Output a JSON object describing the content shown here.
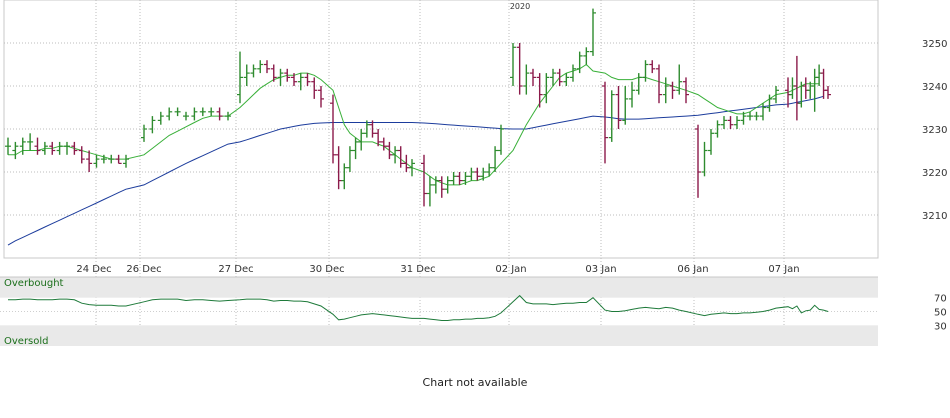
{
  "chart_data": {
    "type": "ohlc",
    "year_marker": "2020",
    "x_ticks": [
      "24 Dec",
      "26 Dec",
      "27 Dec",
      "30 Dec",
      "31 Dec",
      "02 Jan",
      "03 Jan",
      "06 Jan",
      "07 Jan"
    ],
    "y_ticks": [
      3210,
      3220,
      3230,
      3240,
      3250
    ],
    "y_range": [
      3200,
      3260
    ],
    "grid": true,
    "bars": [
      {
        "o": 3226,
        "h": 3228,
        "l": 3224,
        "c": 3226
      },
      {
        "o": 3225,
        "h": 3227,
        "l": 3223,
        "c": 3226
      },
      {
        "o": 3226,
        "h": 3228,
        "l": 3224,
        "c": 3227
      },
      {
        "o": 3227,
        "h": 3229,
        "l": 3225,
        "c": 3227
      },
      {
        "o": 3226,
        "h": 3228,
        "l": 3224,
        "c": 3225
      },
      {
        "o": 3225,
        "h": 3227,
        "l": 3224,
        "c": 3226
      },
      {
        "o": 3226,
        "h": 3227,
        "l": 3224,
        "c": 3225
      },
      {
        "o": 3225,
        "h": 3227,
        "l": 3224,
        "c": 3226
      },
      {
        "o": 3226,
        "h": 3227,
        "l": 3224,
        "c": 3226
      },
      {
        "o": 3226,
        "h": 3227,
        "l": 3224,
        "c": 3225
      },
      {
        "o": 3225,
        "h": 3226,
        "l": 3222,
        "c": 3223
      },
      {
        "o": 3223,
        "h": 3225,
        "l": 3220,
        "c": 3222
      },
      {
        "o": 3222,
        "h": 3224,
        "l": 3221,
        "c": 3223
      },
      {
        "o": 3223,
        "h": 3224,
        "l": 3222,
        "c": 3223
      },
      {
        "o": 3223,
        "h": 3224,
        "l": 3222,
        "c": 3223
      },
      {
        "o": 3223,
        "h": 3224,
        "l": 3222,
        "c": 3222
      },
      {
        "o": 3222,
        "h": 3224,
        "l": 3221,
        "c": 3223
      },
      {
        "o": 3228,
        "h": 3231,
        "l": 3227,
        "c": 3230
      },
      {
        "o": 3230,
        "h": 3233,
        "l": 3229,
        "c": 3232
      },
      {
        "o": 3232,
        "h": 3234,
        "l": 3231,
        "c": 3233
      },
      {
        "o": 3233,
        "h": 3235,
        "l": 3232,
        "c": 3234
      },
      {
        "o": 3234,
        "h": 3235,
        "l": 3233,
        "c": 3234
      },
      {
        "o": 3233,
        "h": 3234,
        "l": 3232,
        "c": 3233
      },
      {
        "o": 3233,
        "h": 3235,
        "l": 3232,
        "c": 3234
      },
      {
        "o": 3234,
        "h": 3235,
        "l": 3233,
        "c": 3234
      },
      {
        "o": 3234,
        "h": 3235,
        "l": 3233,
        "c": 3234
      },
      {
        "o": 3234,
        "h": 3235,
        "l": 3232,
        "c": 3233
      },
      {
        "o": 3233,
        "h": 3234,
        "l": 3232,
        "c": 3233
      },
      {
        "o": 3238,
        "h": 3248,
        "l": 3236,
        "c": 3242
      },
      {
        "o": 3242,
        "h": 3245,
        "l": 3240,
        "c": 3243
      },
      {
        "o": 3243,
        "h": 3245,
        "l": 3242,
        "c": 3244
      },
      {
        "o": 3244,
        "h": 3246,
        "l": 3243,
        "c": 3245
      },
      {
        "o": 3245,
        "h": 3246,
        "l": 3243,
        "c": 3244
      },
      {
        "o": 3244,
        "h": 3245,
        "l": 3241,
        "c": 3242
      },
      {
        "o": 3242,
        "h": 3244,
        "l": 3240,
        "c": 3243
      },
      {
        "o": 3243,
        "h": 3244,
        "l": 3241,
        "c": 3242
      },
      {
        "o": 3242,
        "h": 3243,
        "l": 3240,
        "c": 3241
      },
      {
        "o": 3241,
        "h": 3243,
        "l": 3239,
        "c": 3242
      },
      {
        "o": 3242,
        "h": 3243,
        "l": 3240,
        "c": 3241
      },
      {
        "o": 3241,
        "h": 3242,
        "l": 3237,
        "c": 3239
      },
      {
        "o": 3239,
        "h": 3240,
        "l": 3235,
        "c": 3237
      },
      {
        "o": 3236,
        "h": 3238,
        "l": 3222,
        "c": 3224
      },
      {
        "o": 3224,
        "h": 3226,
        "l": 3216,
        "c": 3218
      },
      {
        "o": 3218,
        "h": 3222,
        "l": 3216,
        "c": 3221
      },
      {
        "o": 3221,
        "h": 3226,
        "l": 3220,
        "c": 3225
      },
      {
        "o": 3225,
        "h": 3228,
        "l": 3223,
        "c": 3227
      },
      {
        "o": 3227,
        "h": 3230,
        "l": 3225,
        "c": 3229
      },
      {
        "o": 3229,
        "h": 3232,
        "l": 3228,
        "c": 3231
      },
      {
        "o": 3231,
        "h": 3232,
        "l": 3228,
        "c": 3229
      },
      {
        "o": 3229,
        "h": 3230,
        "l": 3226,
        "c": 3227
      },
      {
        "o": 3227,
        "h": 3228,
        "l": 3225,
        "c": 3226
      },
      {
        "o": 3226,
        "h": 3227,
        "l": 3223,
        "c": 3224
      },
      {
        "o": 3224,
        "h": 3226,
        "l": 3222,
        "c": 3225
      },
      {
        "o": 3225,
        "h": 3226,
        "l": 3221,
        "c": 3222
      },
      {
        "o": 3222,
        "h": 3224,
        "l": 3220,
        "c": 3221
      },
      {
        "o": 3221,
        "h": 3223,
        "l": 3219,
        "c": 3222
      },
      {
        "o": 3222,
        "h": 3224,
        "l": 3212,
        "c": 3215
      },
      {
        "o": 3215,
        "h": 3219,
        "l": 3212,
        "c": 3217
      },
      {
        "o": 3217,
        "h": 3219,
        "l": 3215,
        "c": 3218
      },
      {
        "o": 3218,
        "h": 3219,
        "l": 3214,
        "c": 3216
      },
      {
        "o": 3216,
        "h": 3219,
        "l": 3215,
        "c": 3218
      },
      {
        "o": 3218,
        "h": 3220,
        "l": 3217,
        "c": 3219
      },
      {
        "o": 3219,
        "h": 3220,
        "l": 3217,
        "c": 3218
      },
      {
        "o": 3218,
        "h": 3220,
        "l": 3217,
        "c": 3219
      },
      {
        "o": 3219,
        "h": 3221,
        "l": 3218,
        "c": 3220
      },
      {
        "o": 3220,
        "h": 3221,
        "l": 3218,
        "c": 3219
      },
      {
        "o": 3219,
        "h": 3221,
        "l": 3218,
        "c": 3220
      },
      {
        "o": 3220,
        "h": 3222,
        "l": 3219,
        "c": 3221
      },
      {
        "o": 3221,
        "h": 3226,
        "l": 3220,
        "c": 3225
      },
      {
        "o": 3225,
        "h": 3231,
        "l": 3224,
        "c": 3230
      },
      {
        "o": 3242,
        "h": 3250,
        "l": 3240,
        "c": 3249
      },
      {
        "o": 3249,
        "h": 3250,
        "l": 3238,
        "c": 3240
      },
      {
        "o": 3240,
        "h": 3245,
        "l": 3238,
        "c": 3243
      },
      {
        "o": 3243,
        "h": 3244,
        "l": 3240,
        "c": 3242
      },
      {
        "o": 3242,
        "h": 3243,
        "l": 3235,
        "c": 3238
      },
      {
        "o": 3238,
        "h": 3243,
        "l": 3236,
        "c": 3242
      },
      {
        "o": 3242,
        "h": 3244,
        "l": 3240,
        "c": 3243
      },
      {
        "o": 3243,
        "h": 3244,
        "l": 3240,
        "c": 3241
      },
      {
        "o": 3241,
        "h": 3243,
        "l": 3240,
        "c": 3242
      },
      {
        "o": 3242,
        "h": 3245,
        "l": 3241,
        "c": 3244
      },
      {
        "o": 3244,
        "h": 3248,
        "l": 3243,
        "c": 3247
      },
      {
        "o": 3247,
        "h": 3249,
        "l": 3245,
        "c": 3248
      },
      {
        "o": 3248,
        "h": 3258,
        "l": 3247,
        "c": 3257
      },
      {
        "o": 3240,
        "h": 3241,
        "l": 3222,
        "c": 3228
      },
      {
        "o": 3228,
        "h": 3239,
        "l": 3227,
        "c": 3238
      },
      {
        "o": 3238,
        "h": 3240,
        "l": 3230,
        "c": 3232
      },
      {
        "o": 3232,
        "h": 3240,
        "l": 3231,
        "c": 3237
      },
      {
        "o": 3237,
        "h": 3241,
        "l": 3235,
        "c": 3239
      },
      {
        "o": 3239,
        "h": 3243,
        "l": 3238,
        "c": 3242
      },
      {
        "o": 3242,
        "h": 3246,
        "l": 3241,
        "c": 3245
      },
      {
        "o": 3245,
        "h": 3246,
        "l": 3243,
        "c": 3244
      },
      {
        "o": 3244,
        "h": 3245,
        "l": 3236,
        "c": 3238
      },
      {
        "o": 3238,
        "h": 3242,
        "l": 3236,
        "c": 3240
      },
      {
        "o": 3240,
        "h": 3241,
        "l": 3237,
        "c": 3239
      },
      {
        "o": 3239,
        "h": 3245,
        "l": 3238,
        "c": 3241
      },
      {
        "o": 3241,
        "h": 3242,
        "l": 3236,
        "c": 3238
      },
      {
        "o": 3230,
        "h": 3231,
        "l": 3214,
        "c": 3220
      },
      {
        "o": 3220,
        "h": 3227,
        "l": 3219,
        "c": 3225
      },
      {
        "o": 3225,
        "h": 3230,
        "l": 3224,
        "c": 3229
      },
      {
        "o": 3229,
        "h": 3232,
        "l": 3228,
        "c": 3231
      },
      {
        "o": 3231,
        "h": 3233,
        "l": 3230,
        "c": 3232
      },
      {
        "o": 3232,
        "h": 3233,
        "l": 3230,
        "c": 3231
      },
      {
        "o": 3231,
        "h": 3233,
        "l": 3230,
        "c": 3232
      },
      {
        "o": 3232,
        "h": 3234,
        "l": 3231,
        "c": 3233
      },
      {
        "o": 3233,
        "h": 3234,
        "l": 3232,
        "c": 3233
      },
      {
        "o": 3233,
        "h": 3234,
        "l": 3232,
        "c": 3233
      },
      {
        "o": 3233,
        "h": 3236,
        "l": 3232,
        "c": 3235
      },
      {
        "o": 3235,
        "h": 3238,
        "l": 3234,
        "c": 3237
      },
      {
        "o": 3237,
        "h": 3240,
        "l": 3236,
        "c": 3239
      },
      {
        "o": 3239,
        "h": 3242,
        "l": 3235,
        "c": 3238
      },
      {
        "o": 3238,
        "h": 3242,
        "l": 3237,
        "c": 3240
      },
      {
        "o": 3240,
        "h": 3247,
        "l": 3232,
        "c": 3236
      },
      {
        "o": 3236,
        "h": 3241,
        "l": 3235,
        "c": 3240
      },
      {
        "o": 3240,
        "h": 3242,
        "l": 3237,
        "c": 3239
      },
      {
        "o": 3239,
        "h": 3241,
        "l": 3237,
        "c": 3240
      },
      {
        "o": 3240,
        "h": 3244,
        "l": 3234,
        "c": 3242
      },
      {
        "o": 3242,
        "h": 3245,
        "l": 3240,
        "c": 3243
      },
      {
        "o": 3243,
        "h": 3244,
        "l": 3237,
        "c": 3239
      },
      {
        "o": 3239,
        "h": 3240,
        "l": 3237,
        "c": 3238
      }
    ],
    "ma_short": [
      3224,
      3224,
      3225,
      3225,
      3225,
      3225.5,
      3225.5,
      3226,
      3226,
      3225.5,
      3225,
      3224.5,
      3224,
      3223.5,
      3223,
      3223,
      3223,
      3224,
      3225.5,
      3227,
      3228.5,
      3229.5,
      3230.5,
      3231.5,
      3232.5,
      3233,
      3233,
      3233,
      3235,
      3236.5,
      3238,
      3239.5,
      3240.5,
      3241.5,
      3242,
      3242.5,
      3242.5,
      3243,
      3243,
      3242.5,
      3241.5,
      3239,
      3235,
      3231,
      3229,
      3228,
      3227,
      3227,
      3227,
      3226.5,
      3226,
      3225,
      3224,
      3223,
      3222,
      3221,
      3220,
      3219,
      3218,
      3217.5,
      3217,
      3217,
      3217,
      3217.5,
      3218,
      3218,
      3218.5,
      3219,
      3220.5,
      3222,
      3225,
      3228,
      3231,
      3233.5,
      3236,
      3238,
      3240,
      3242,
      3243,
      3243.5,
      3244,
      3245,
      3243.5,
      3243,
      3242,
      3241.5,
      3241.5,
      3241.5,
      3242,
      3242,
      3241.5,
      3241,
      3240.5,
      3240,
      3239.5,
      3239,
      3238,
      3237,
      3236,
      3235,
      3234.5,
      3234,
      3233.5,
      3233.5,
      3234,
      3235,
      3236,
      3237,
      3238,
      3238.5,
      3239,
      3239.5,
      3240,
      3240.5,
      3240.5,
      3240.5,
      3240.5
    ],
    "ma_long": [
      3203,
      3204,
      3204.8,
      3205.6,
      3206.4,
      3207.2,
      3208,
      3208.8,
      3209.6,
      3210.4,
      3211.2,
      3212,
      3212.8,
      3213.6,
      3214.4,
      3215.2,
      3216,
      3217,
      3218,
      3219,
      3220,
      3221,
      3222,
      3222.9,
      3223.8,
      3224.7,
      3225.6,
      3226.5,
      3227,
      3227.5,
      3228,
      3228.5,
      3229,
      3229.5,
      3230,
      3230.3,
      3230.6,
      3230.9,
      3231.1,
      3231.3,
      3231.4,
      3231.5,
      3231.5,
      3231.5,
      3231.5,
      3231.5,
      3231.5,
      3231.5,
      3231.5,
      3231.5,
      3231.5,
      3231.5,
      3231.5,
      3231.5,
      3231.5,
      3231.5,
      3231.4,
      3231.3,
      3231.2,
      3231.1,
      3231,
      3230.9,
      3230.8,
      3230.7,
      3230.6,
      3230.5,
      3230.4,
      3230.3,
      3230.2,
      3230.1,
      3230,
      3230,
      3230,
      3230.3,
      3230.6,
      3230.9,
      3231.2,
      3231.5,
      3231.8,
      3232.1,
      3232.4,
      3232.7,
      3233,
      3232.8,
      3232.6,
      3232.4,
      3232.3,
      3232.3,
      3232.3,
      3232.4,
      3232.5,
      3232.6,
      3232.7,
      3232.8,
      3232.9,
      3233,
      3233.2,
      3233.4,
      3233.6,
      3233.8,
      3234,
      3234.2,
      3234.4,
      3234.6,
      3234.8,
      3235,
      3235.2,
      3235.4,
      3235.6,
      3235.8,
      3236,
      3236.2,
      3236.4,
      3236.6,
      3236.8,
      3237,
      3237.3,
      3237.6
    ],
    "oscillator": {
      "upper_label": "Overbought",
      "lower_label": "Oversold",
      "y_ticks": [
        70,
        50,
        30
      ],
      "y_range": [
        0,
        100
      ],
      "values": [
        67,
        67,
        68,
        68,
        67,
        67,
        67,
        68,
        68,
        67,
        62,
        60,
        59,
        59,
        59,
        58,
        58,
        64,
        67,
        68,
        68,
        68,
        66,
        67,
        67,
        66,
        65,
        66,
        67,
        68,
        68,
        68,
        67,
        65,
        66,
        66,
        65,
        65,
        64,
        61,
        58,
        46,
        38,
        39,
        41,
        43,
        45,
        46,
        47,
        46,
        45,
        44,
        43,
        42,
        41,
        40,
        40,
        39,
        38,
        37,
        37,
        38,
        38,
        39,
        39,
        40,
        40,
        41,
        43,
        48,
        64,
        73,
        63,
        61,
        61,
        61,
        60,
        61,
        62,
        62,
        63,
        63,
        70,
        52,
        50,
        50,
        51,
        53,
        55,
        56,
        55,
        54,
        56,
        55,
        52,
        50,
        46,
        44,
        46,
        47,
        48,
        47,
        47,
        48,
        48,
        49,
        50,
        52,
        55,
        57,
        54,
        58,
        48,
        51,
        52,
        59,
        53,
        52,
        50,
        50
      ]
    },
    "colors": {
      "up": "#2e8b2e",
      "down": "#8b1a4a",
      "ma_short": "#39b039",
      "ma_long": "#1c3c9c",
      "osc": "#1e7a3a",
      "band": "#e9e9e9"
    }
  },
  "footer": {
    "note": "Chart not available"
  }
}
